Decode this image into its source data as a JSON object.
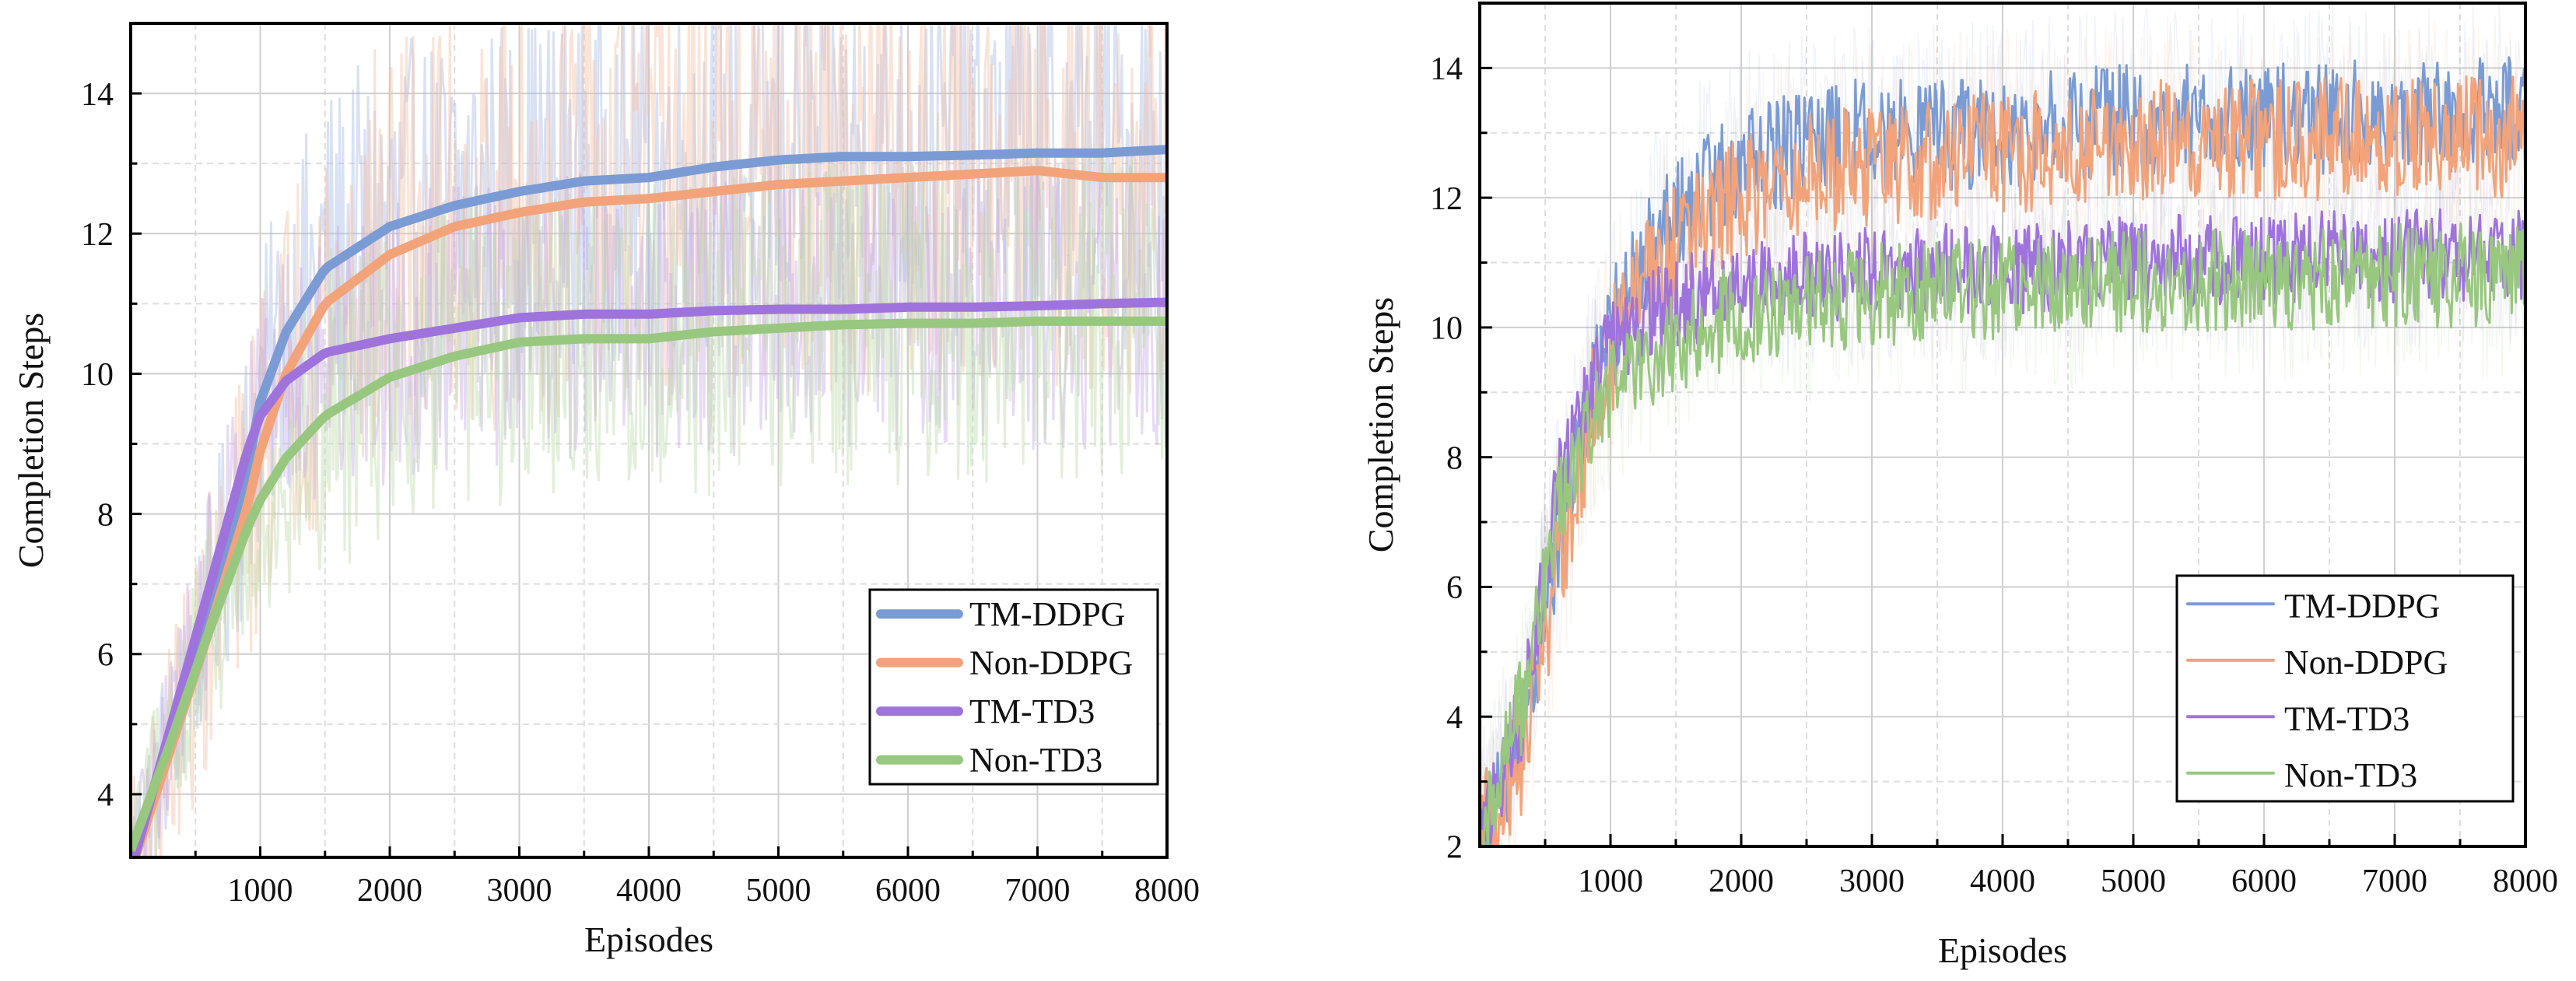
{
  "chart_data": [
    {
      "type": "line",
      "id": "left",
      "xlabel": "Episodes",
      "ylabel": "Completion Steps",
      "xlim": [
        0,
        8000
      ],
      "ylim": [
        3.1,
        15
      ],
      "xticks": [
        1000,
        2000,
        3000,
        4000,
        5000,
        6000,
        7000,
        8000
      ],
      "xtick_labels": [
        "1000",
        "2000",
        "3000",
        "4000",
        "5000",
        "6000",
        "7000",
        "8000"
      ],
      "yticks": [
        4,
        6,
        8,
        10,
        12,
        14
      ],
      "ytick_labels": [
        "4",
        "6",
        "8",
        "10",
        "12",
        "14"
      ],
      "grid": true,
      "legend_position": "bottom-right",
      "series": [
        {
          "name": "TM-DDPG",
          "color": "#7b9bd4",
          "band_color": "#aabde6",
          "noise": 2.0,
          "x": [
            0,
            300,
            600,
            900,
            1000,
            1200,
            1500,
            2000,
            2500,
            3000,
            3500,
            4000,
            4500,
            5000,
            5500,
            6000,
            6500,
            7000,
            7500,
            8000
          ],
          "values": [
            3.0,
            4.8,
            6.6,
            8.6,
            9.6,
            10.6,
            11.5,
            12.1,
            12.4,
            12.6,
            12.75,
            12.8,
            12.95,
            13.05,
            13.1,
            13.1,
            13.12,
            13.15,
            13.15,
            13.2
          ]
        },
        {
          "name": "Non-DDPG",
          "color": "#f2a37a",
          "band_color": "#f5c2a6",
          "noise": 2.4,
          "x": [
            0,
            300,
            600,
            900,
            1000,
            1200,
            1500,
            2000,
            2500,
            3000,
            3500,
            4000,
            4500,
            5000,
            5500,
            6000,
            6500,
            7000,
            7500,
            8000
          ],
          "values": [
            2.9,
            4.6,
            6.3,
            8.1,
            8.9,
            10.0,
            11.0,
            11.7,
            12.1,
            12.3,
            12.45,
            12.5,
            12.6,
            12.7,
            12.75,
            12.8,
            12.85,
            12.9,
            12.8,
            12.8
          ]
        },
        {
          "name": "TM-TD3",
          "color": "#9f73dc",
          "band_color": "#c7aee8",
          "noise": 1.6,
          "x": [
            0,
            300,
            600,
            900,
            1000,
            1200,
            1500,
            2000,
            2500,
            3000,
            3500,
            4000,
            4500,
            5000,
            5500,
            6000,
            6500,
            7000,
            7500,
            8000
          ],
          "values": [
            2.9,
            4.9,
            6.9,
            8.9,
            9.4,
            9.9,
            10.3,
            10.5,
            10.65,
            10.8,
            10.85,
            10.85,
            10.9,
            10.92,
            10.92,
            10.95,
            10.95,
            10.97,
            11.0,
            11.02
          ]
        },
        {
          "name": "Non-TD3",
          "color": "#98c77f",
          "band_color": "#bfdcae",
          "noise": 1.8,
          "x": [
            0,
            300,
            600,
            900,
            1000,
            1200,
            1500,
            2000,
            2500,
            3000,
            3500,
            4000,
            4500,
            5000,
            5500,
            6000,
            6500,
            7000,
            7500,
            8000
          ],
          "values": [
            3.2,
            4.7,
            6.3,
            7.8,
            8.2,
            8.8,
            9.4,
            9.95,
            10.25,
            10.45,
            10.5,
            10.5,
            10.6,
            10.65,
            10.7,
            10.72,
            10.72,
            10.75,
            10.75,
            10.75
          ]
        }
      ]
    },
    {
      "type": "line",
      "id": "right",
      "xlabel": "Episodes",
      "ylabel": "Completion Steps",
      "xlim": [
        0,
        8000
      ],
      "ylim": [
        2,
        15
      ],
      "xticks": [
        1000,
        2000,
        3000,
        4000,
        5000,
        6000,
        7000,
        8000
      ],
      "xtick_labels": [
        "1000",
        "2000",
        "3000",
        "4000",
        "5000",
        "6000",
        "7000",
        "8000"
      ],
      "yticks": [
        2,
        4,
        6,
        8,
        10,
        12,
        14
      ],
      "ytick_labels": [
        "2",
        "4",
        "6",
        "8",
        "10",
        "12",
        "14"
      ],
      "grid": true,
      "legend_position": "bottom-right",
      "series": [
        {
          "name": "TM-DDPG",
          "color": "#7b9bd4",
          "noise": 0.55,
          "x": [
            0,
            300,
            600,
            900,
            1200,
            1500,
            2000,
            2500,
            3000,
            4000,
            5000,
            6000,
            7000,
            8000
          ],
          "values": [
            2.2,
            3.4,
            6.8,
            9.5,
            10.8,
            11.8,
            12.5,
            12.8,
            13.0,
            13.0,
            13.2,
            13.2,
            13.25,
            13.3
          ]
        },
        {
          "name": "Non-DDPG",
          "color": "#f2a37a",
          "noise": 0.6,
          "x": [
            0,
            300,
            600,
            900,
            1200,
            1500,
            2000,
            2500,
            3000,
            4000,
            5000,
            6000,
            7000,
            8000
          ],
          "values": [
            2.2,
            3.2,
            6.3,
            9.1,
            10.5,
            11.3,
            12.0,
            12.4,
            12.5,
            12.7,
            12.9,
            12.9,
            12.95,
            12.9
          ]
        },
        {
          "name": "TM-TD3",
          "color": "#9f73dc",
          "noise": 0.45,
          "x": [
            0,
            300,
            600,
            900,
            1200,
            1500,
            2000,
            2500,
            3000,
            4000,
            5000,
            6000,
            7000,
            8000
          ],
          "values": [
            2.3,
            3.8,
            7.5,
            9.4,
            10.1,
            10.4,
            10.6,
            10.75,
            10.85,
            10.9,
            11.0,
            11.05,
            11.1,
            11.1
          ]
        },
        {
          "name": "Non-TD3",
          "color": "#98c77f",
          "noise": 0.5,
          "x": [
            0,
            300,
            600,
            900,
            1200,
            1500,
            2000,
            2500,
            3000,
            4000,
            5000,
            6000,
            7000,
            8000
          ],
          "values": [
            2.3,
            4.0,
            7.3,
            8.8,
            9.4,
            9.8,
            10.2,
            10.4,
            10.5,
            10.6,
            10.7,
            10.75,
            10.8,
            10.8
          ]
        }
      ]
    }
  ]
}
